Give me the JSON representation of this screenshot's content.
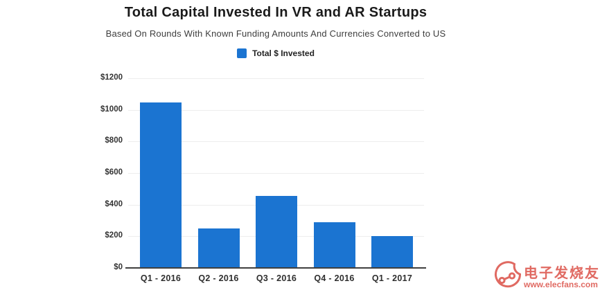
{
  "title": "Total Capital Invested In VR and AR Startups",
  "subtitle": "Based On Rounds With Known Funding Amounts And Currencies Converted to US",
  "legend": {
    "label": "Total $ Invested"
  },
  "colors": {
    "bar": "#1b74d1",
    "watermark": "#d9453c",
    "gridline": "#ededed",
    "axis_line": "#3f3f3f"
  },
  "chart_data": {
    "type": "bar",
    "title": "Total Capital Invested In VR and AR Startups",
    "subtitle": "Based On Rounds With Known Funding Amounts And Currencies Converted to US",
    "series_name": "Total $ Invested",
    "categories": [
      "Q1 - 2016",
      "Q2 - 2016",
      "Q3 - 2016",
      "Q4 - 2016",
      "Q1 - 2017"
    ],
    "values": [
      1045,
      250,
      455,
      290,
      200
    ],
    "xlabel": "",
    "ylabel": "",
    "ylim": [
      0,
      1200
    ],
    "ytick_step": 200,
    "ytick_labels": [
      "$0",
      "$200",
      "$400",
      "$600",
      "$800",
      "$1000",
      "$1200"
    ],
    "grid": true,
    "legend_position": "top",
    "bar_color": "#1b74d1"
  },
  "watermark": {
    "cn_text": "电子发烧友",
    "url_text": "www.elecfans.com"
  }
}
